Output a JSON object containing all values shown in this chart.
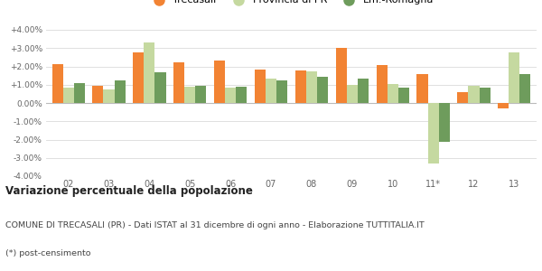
{
  "years": [
    "02",
    "03",
    "04",
    "05",
    "06",
    "07",
    "08",
    "09",
    "10",
    "11*",
    "12",
    "13"
  ],
  "trecasali": [
    2.1,
    0.95,
    2.75,
    2.2,
    2.3,
    1.85,
    1.8,
    3.0,
    2.05,
    1.6,
    0.6,
    -0.3
  ],
  "provincia_pr": [
    0.85,
    0.75,
    3.3,
    0.9,
    0.85,
    1.35,
    1.75,
    1.0,
    1.05,
    -3.3,
    0.95,
    2.75
  ],
  "em_romagna": [
    1.1,
    1.25,
    1.7,
    0.92,
    0.9,
    1.25,
    1.45,
    1.35,
    0.85,
    -2.1,
    0.85,
    1.6
  ],
  "color_trecasali": "#f28333",
  "color_provincia": "#c5d9a0",
  "color_emromagna": "#6e9c5c",
  "title": "Variazione percentuale della popolazione",
  "subtitle1": "COMUNE DI TRECASALI (PR) - Dati ISTAT al 31 dicembre di ogni anno - Elaborazione TUTTITALIA.IT",
  "subtitle2": "(*) post-censimento",
  "legend_labels": [
    "Trecasali",
    "Provincia di PR",
    "Em.-Romagna"
  ],
  "ylim": [
    -4.0,
    4.0
  ],
  "yticks": [
    -4.0,
    -3.0,
    -2.0,
    -1.0,
    0.0,
    1.0,
    2.0,
    3.0,
    4.0
  ],
  "background_color": "#ffffff",
  "grid_color": "#e0e0e0"
}
